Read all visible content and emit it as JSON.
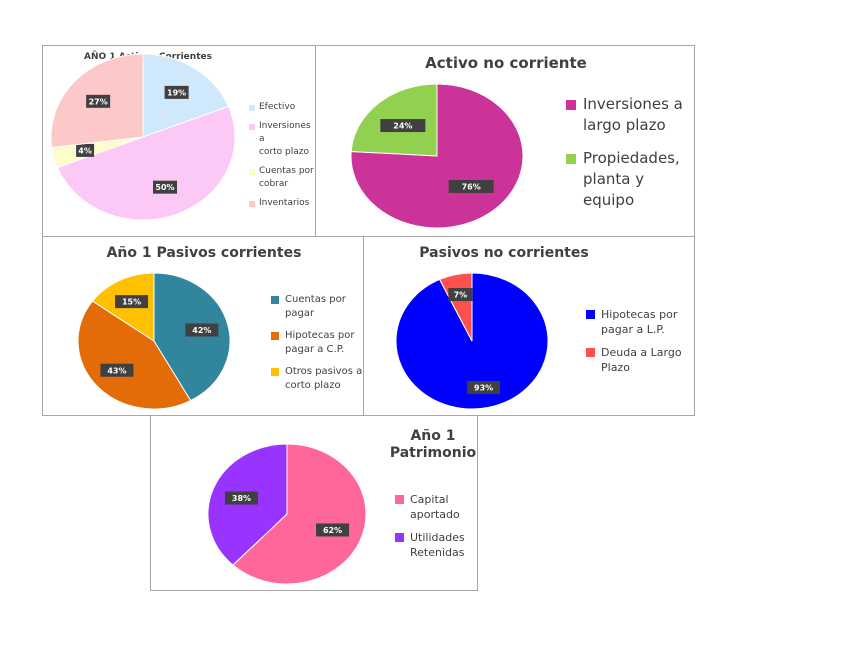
{
  "chart_data": [
    {
      "id": "activos-corrientes",
      "type": "pie",
      "title": "AÑO 1 Activos Corrientes",
      "labels": [
        "Efectivo",
        "Inversiones a\ncorto plazo",
        "Cuentas por\ncobrar",
        "Inventarios"
      ],
      "values": [
        19,
        50,
        4,
        27
      ],
      "data_labels": [
        "19%",
        "50%",
        "4%",
        "27%"
      ],
      "colors": [
        "#cfe8fc",
        "#fcc8f6",
        "#fdfccb",
        "#fcc8c8"
      ],
      "legend": "right"
    },
    {
      "id": "activo-no-corriente",
      "type": "pie",
      "title": "Activo no corriente",
      "labels": [
        "Inversiones a\nlargo plazo",
        "Propiedades,\nplanta y\nequipo"
      ],
      "values": [
        76,
        24
      ],
      "data_labels": [
        "76%",
        "24%"
      ],
      "colors": [
        "#cc3399",
        "#92d050"
      ],
      "legend": "right"
    },
    {
      "id": "pasivos-corrientes",
      "type": "pie",
      "title": "Año 1 Pasivos corrientes",
      "labels": [
        "Cuentas por\npagar",
        "Hipotecas por\npagar a C.P.",
        "Otros pasivos a\ncorto plazo"
      ],
      "values": [
        42,
        43,
        15
      ],
      "data_labels": [
        "42%",
        "43%",
        "15%"
      ],
      "colors": [
        "#31859c",
        "#e36c09",
        "#ffc000"
      ],
      "legend": "right"
    },
    {
      "id": "pasivos-no-corrientes",
      "type": "pie",
      "title": "Pasivos no corrientes",
      "labels": [
        "Hipotecas por\npagar a L.P.",
        "Deuda a Largo\nPlazo"
      ],
      "values": [
        93,
        7
      ],
      "data_labels": [
        "93%",
        "7%"
      ],
      "colors": [
        "#0000ff",
        "#ff5050"
      ],
      "legend": "right"
    },
    {
      "id": "patrimonio",
      "type": "pie",
      "title": "Año 1\nPatrimonio",
      "labels": [
        "Capital\naportado",
        "Utilidades\nRetenidas"
      ],
      "values": [
        62,
        38
      ],
      "data_labels": [
        "62%",
        "38%"
      ],
      "colors": [
        "#ff6699",
        "#9933ff"
      ],
      "legend": "right"
    }
  ]
}
